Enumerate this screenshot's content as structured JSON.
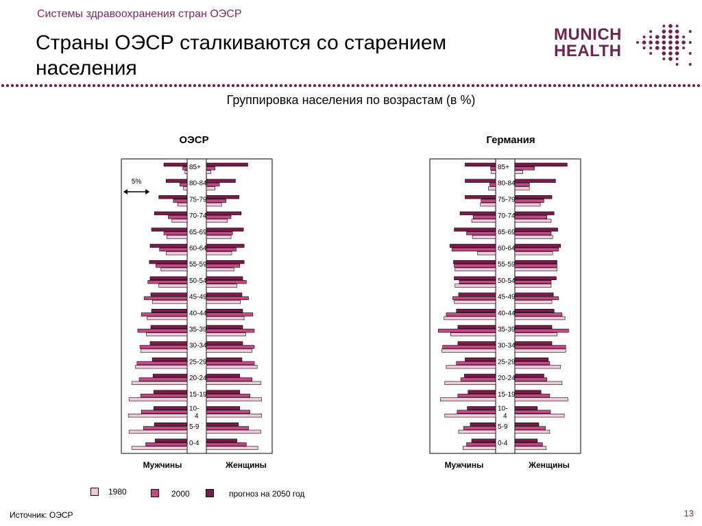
{
  "header": {
    "section": "Системы здравоохранения стран ОЭСР",
    "title": "Страны ОЭСР сталкиваются со старением населения",
    "page_number": "13"
  },
  "logo": {
    "line1": "MUNICH",
    "line2": "HEALTH",
    "color": "#6e2450"
  },
  "footer": {
    "source": "Источник: ОЭСР"
  },
  "colors": {
    "s1980": "#f2c9dc",
    "s2000": "#c8468a",
    "s2050": "#7a1b4a"
  },
  "chart_data": [
    {
      "type": "bar",
      "title": "ОЭСР",
      "subtitle": "Группировка населения по возрастам (в %)",
      "male_label": "Мужчины",
      "female_label": "Женщины",
      "scale_label": "5%",
      "categories": [
        "85+",
        "80-84",
        "75-79",
        "70-74",
        "65-69",
        "60-64",
        "55-59",
        "50-54",
        "45-49",
        "40-44",
        "35-39",
        "30-34",
        "25-29",
        "20-24",
        "15-19",
        "10-4",
        "5-9",
        "0-4"
      ],
      "series": [
        {
          "name": "1980",
          "male": [
            0.3,
            0.5,
            1.3,
            2.1,
            2.8,
            2.9,
            3.6,
            3.9,
            4.8,
            5.5,
            5.6,
            6.4,
            7.1,
            7.6,
            8.0,
            8.1,
            8.0,
            7.6
          ],
          "female": [
            0.6,
            1.2,
            2.1,
            2.9,
            3.4,
            3.5,
            3.8,
            4.2,
            4.7,
            5.2,
            5.4,
            6.3,
            7.0,
            7.5,
            7.6,
            7.6,
            7.5,
            7.1
          ]
        },
        {
          "name": "2000",
          "male": [
            0.6,
            1.0,
            1.9,
            2.6,
            3.2,
            3.8,
            4.3,
            5.4,
            5.9,
            6.3,
            6.8,
            6.5,
            6.9,
            6.6,
            6.4,
            6.3,
            6.0,
            5.7
          ],
          "female": [
            1.2,
            1.8,
            2.7,
            3.4,
            3.6,
            4.1,
            4.6,
            5.5,
            5.8,
            6.4,
            6.6,
            6.6,
            6.6,
            6.3,
            6.0,
            6.0,
            5.8,
            5.5
          ]
        },
        {
          "name": "прогноз на 2050 год",
          "male": [
            3.2,
            2.9,
            3.9,
            4.5,
            4.9,
            5.1,
            5.2,
            5.1,
            5.0,
            4.9,
            5.0,
            5.1,
            4.8,
            4.7,
            4.6,
            4.6,
            4.5,
            4.4
          ],
          "female": [
            5.7,
            4.0,
            4.5,
            4.8,
            5.1,
            5.2,
            5.2,
            5.0,
            4.9,
            5.0,
            5.0,
            5.0,
            4.9,
            4.6,
            4.6,
            4.6,
            4.4,
            4.2
          ]
        }
      ]
    },
    {
      "type": "bar",
      "title": "Германия",
      "male_label": "Мужчины",
      "female_label": "Женщины",
      "categories": [
        "85+",
        "80-84",
        "75-79",
        "70-74",
        "65-69",
        "60-64",
        "55-59",
        "50-54",
        "45-49",
        "40-44",
        "35-39",
        "30-34",
        "25-29",
        "20-24",
        "15-19",
        "10-4",
        "5-9",
        "0-4"
      ],
      "series": [
        {
          "name": "1980",
          "male": [
            0.6,
            1.0,
            2.1,
            3.3,
            3.2,
            2.5,
            5.6,
            5.6,
            5.7,
            7.1,
            6.2,
            7.4,
            6.8,
            7.0,
            7.6,
            7.0,
            5.1,
            4.5
          ],
          "female": [
            1.1,
            2.0,
            3.5,
            5.0,
            5.2,
            5.2,
            5.8,
            5.0,
            5.1,
            6.9,
            5.8,
            7.0,
            6.3,
            6.5,
            7.3,
            6.8,
            4.8,
            4.3
          ]
        },
        {
          "name": "2000",
          "male": [
            0.7,
            0.8,
            2.0,
            3.1,
            4.0,
            6.0,
            5.7,
            5.0,
            5.9,
            6.8,
            7.9,
            7.3,
            5.4,
            4.8,
            5.2,
            5.3,
            4.4,
            4.0
          ],
          "female": [
            2.7,
            2.0,
            4.0,
            4.4,
            5.0,
            6.0,
            5.8,
            5.0,
            6.0,
            6.5,
            7.4,
            7.0,
            4.8,
            4.4,
            4.8,
            4.9,
            4.2,
            3.8
          ]
        },
        {
          "name": "прогноз на 2050 год",
          "male": [
            4.2,
            4.2,
            4.2,
            4.9,
            5.7,
            6.3,
            5.8,
            5.7,
            5.1,
            5.4,
            5.2,
            5.2,
            4.2,
            4.3,
            3.8,
            3.9,
            3.5,
            3.3
          ],
          "female": [
            7.2,
            5.6,
            5.1,
            5.4,
            5.9,
            6.3,
            5.8,
            5.7,
            5.3,
            5.4,
            5.1,
            5.1,
            4.6,
            4.0,
            3.6,
            3.1,
            3.3,
            3.1
          ]
        }
      ]
    }
  ]
}
